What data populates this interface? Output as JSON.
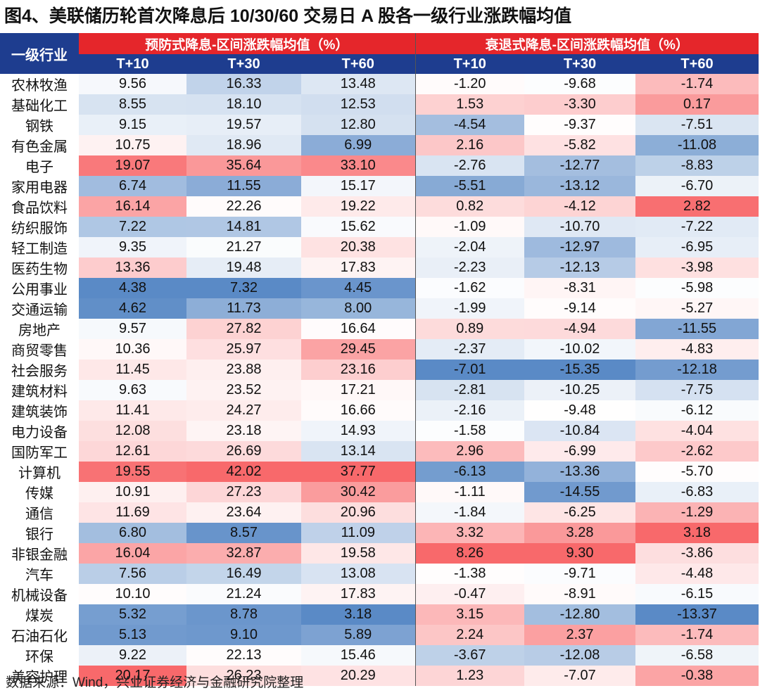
{
  "title": "图4、美联储历轮首次降息后 10/30/60 交易日 A 股各一级行业涨跌幅均值",
  "table": {
    "corner": "一级行业",
    "groups": [
      "预防式降息-区间涨跌幅均值（%）",
      "衰退式降息-区间涨跌幅均值（%）"
    ],
    "columns": [
      "T+10",
      "T+30",
      "T+60",
      "T+10",
      "T+30",
      "T+60"
    ],
    "rows": [
      [
        "农林牧渔",
        "9.56",
        "16.33",
        "13.48",
        "-1.20",
        "-9.68",
        "-1.74"
      ],
      [
        "基础化工",
        "8.55",
        "18.10",
        "12.53",
        "1.53",
        "-3.30",
        "0.17"
      ],
      [
        "钢铁",
        "9.15",
        "19.57",
        "12.80",
        "-4.54",
        "-9.37",
        "-7.51"
      ],
      [
        "有色金属",
        "10.75",
        "18.96",
        "6.99",
        "2.16",
        "-5.82",
        "-11.08"
      ],
      [
        "电子",
        "19.07",
        "35.64",
        "33.10",
        "-2.76",
        "-12.77",
        "-8.83"
      ],
      [
        "家用电器",
        "6.74",
        "11.55",
        "15.17",
        "-5.51",
        "-13.12",
        "-6.70"
      ],
      [
        "食品饮料",
        "16.14",
        "22.26",
        "19.22",
        "0.82",
        "-4.12",
        "2.82"
      ],
      [
        "纺织服饰",
        "7.22",
        "14.81",
        "15.62",
        "-1.09",
        "-10.70",
        "-7.22"
      ],
      [
        "轻工制造",
        "9.35",
        "21.27",
        "20.38",
        "-2.04",
        "-12.97",
        "-6.95"
      ],
      [
        "医药生物",
        "13.36",
        "19.48",
        "17.83",
        "-2.23",
        "-12.13",
        "-3.98"
      ],
      [
        "公用事业",
        "4.38",
        "7.32",
        "4.45",
        "-1.62",
        "-8.31",
        "-5.98"
      ],
      [
        "交通运输",
        "4.62",
        "11.73",
        "8.00",
        "-1.99",
        "-9.14",
        "-5.27"
      ],
      [
        "房地产",
        "9.57",
        "27.82",
        "16.64",
        "0.89",
        "-4.94",
        "-11.55"
      ],
      [
        "商贸零售",
        "10.36",
        "25.97",
        "29.45",
        "-2.37",
        "-10.02",
        "-4.83"
      ],
      [
        "社会服务",
        "11.45",
        "23.88",
        "23.16",
        "-7.01",
        "-15.35",
        "-12.18"
      ],
      [
        "建筑材料",
        "9.63",
        "23.52",
        "17.21",
        "-2.81",
        "-10.25",
        "-7.75"
      ],
      [
        "建筑装饰",
        "11.41",
        "24.27",
        "16.66",
        "-2.16",
        "-9.48",
        "-6.12"
      ],
      [
        "电力设备",
        "12.08",
        "23.18",
        "14.93",
        "-1.58",
        "-10.84",
        "-4.04"
      ],
      [
        "国防军工",
        "12.61",
        "26.69",
        "13.14",
        "2.96",
        "-6.99",
        "-2.62"
      ],
      [
        "计算机",
        "19.55",
        "42.02",
        "37.77",
        "-6.13",
        "-13.36",
        "-5.70"
      ],
      [
        "传媒",
        "10.91",
        "27.23",
        "30.42",
        "-1.11",
        "-14.55",
        "-6.83"
      ],
      [
        "通信",
        "11.69",
        "23.64",
        "20.96",
        "-1.84",
        "-6.25",
        "-1.29"
      ],
      [
        "银行",
        "6.80",
        "8.57",
        "11.09",
        "3.32",
        "3.28",
        "3.18"
      ],
      [
        "非银金融",
        "16.04",
        "32.87",
        "19.58",
        "8.26",
        "9.30",
        "-3.86"
      ],
      [
        "汽车",
        "7.56",
        "16.49",
        "13.08",
        "-1.38",
        "-9.71",
        "-4.48"
      ],
      [
        "机械设备",
        "10.10",
        "21.24",
        "17.83",
        "-0.47",
        "-8.91",
        "-6.15"
      ],
      [
        "煤炭",
        "5.32",
        "8.78",
        "3.18",
        "3.15",
        "-12.80",
        "-13.37"
      ],
      [
        "石油石化",
        "5.13",
        "9.10",
        "5.89",
        "2.24",
        "2.37",
        "-1.74"
      ],
      [
        "环保",
        "9.22",
        "22.13",
        "15.46",
        "-3.67",
        "-12.08",
        "-6.58"
      ],
      [
        "美容护理",
        "20.17",
        "26.23",
        "20.29",
        "1.23",
        "-7.07",
        "-0.38"
      ]
    ]
  },
  "source": "数据来源：Wind，兴业证券经济与金融研究院整理"
}
